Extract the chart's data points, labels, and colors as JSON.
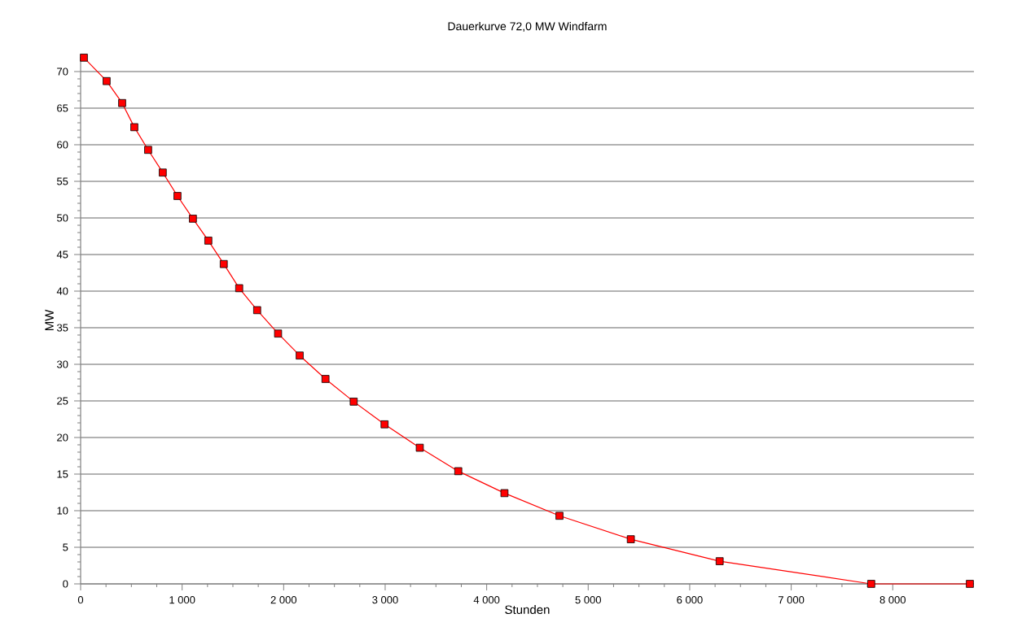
{
  "chart_data": {
    "type": "line",
    "title": "Dauerkurve 72,0 MW Windfarm",
    "xlabel": "Stunden",
    "ylabel": "MW",
    "x": [
      32,
      256,
      409,
      529,
      665,
      809,
      954,
      1106,
      1258,
      1410,
      1562,
      1739,
      1945,
      2158,
      2412,
      2690,
      2994,
      3341,
      3720,
      4175,
      4717,
      5420,
      6295,
      7788,
      8760
    ],
    "series": [
      {
        "color": "#ff0000",
        "values": [
          71.9,
          68.7,
          65.7,
          62.4,
          59.3,
          56.2,
          53.0,
          49.9,
          46.9,
          43.7,
          40.4,
          37.4,
          34.2,
          31.2,
          28.0,
          24.9,
          21.8,
          18.6,
          15.4,
          12.4,
          9.3,
          6.1,
          3.1,
          0,
          0
        ]
      }
    ],
    "xlim": [
      0,
      8800
    ],
    "ylim": [
      0,
      72
    ],
    "xticks": [
      0,
      {
        "value": 1000,
        "label": "1 000"
      },
      {
        "value": 2000,
        "label": "2 000"
      },
      {
        "value": 3000,
        "label": "3 000"
      },
      {
        "value": 4000,
        "label": "4 000"
      },
      {
        "value": 5000,
        "label": "5 000"
      },
      {
        "value": 6000,
        "label": "6 000"
      },
      {
        "value": 7000,
        "label": "7 000"
      },
      {
        "value": 8000,
        "label": "8 000"
      }
    ],
    "yticks": [
      0,
      5,
      10,
      15,
      20,
      25,
      30,
      35,
      40,
      45,
      50,
      55,
      60,
      65,
      70
    ],
    "grid": "y",
    "marker": "square",
    "line_style": "solid"
  }
}
